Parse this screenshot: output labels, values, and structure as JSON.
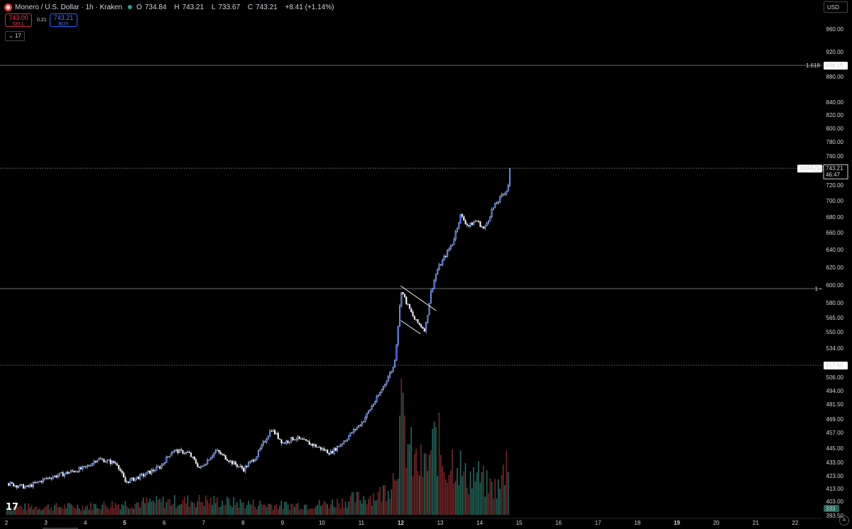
{
  "header": {
    "symbol_title": "Monero / U.S. Dollar · 1h · Kraken",
    "ohlc": {
      "open_label": "O",
      "open": "734.84",
      "high_label": "H",
      "high": "743.21",
      "low_label": "L",
      "low": "733.67",
      "close_label": "C",
      "close": "743.21",
      "change": "+8.41 (+1.14%)"
    }
  },
  "trade": {
    "sell_price": "743.00",
    "sell_label": "SELL",
    "spread": "0.21",
    "buy_price": "743.21",
    "buy_label": "BUY"
  },
  "indicator_toggle": "17",
  "currency": "USD",
  "badges": {
    "fib_1618_label": "1.618",
    "fib_1618_price": "898.16",
    "symbol": "XMRUSD",
    "last_price": "743.21",
    "countdown": "46:47",
    "fib_1_label": "1",
    "support_price": "517.60",
    "volume": "333",
    "auto_scale": "A"
  },
  "colors": {
    "up": "#2962ff",
    "down": "#ffffff",
    "vol_up": "#1f6b5e",
    "vol_down": "#7a2626",
    "level": "#9aa0a6",
    "background": "#000000"
  },
  "chart_data": {
    "type": "candlestick",
    "y_ticks": [
      "960.00",
      "920.00",
      "880.00",
      "840.00",
      "820.00",
      "800.00",
      "780.00",
      "760.00",
      "720.00",
      "700.00",
      "680.00",
      "660.00",
      "640.00",
      "620.00",
      "600.00",
      "580.00",
      "565.00",
      "550.00",
      "534.00",
      "506.00",
      "494.00",
      "481.50",
      "469.00",
      "457.00",
      "445.00",
      "433.00",
      "423.00",
      "413.00",
      "403.00",
      "393.50"
    ],
    "x_ticks": [
      {
        "label": "2",
        "bold": false
      },
      {
        "label": "3",
        "bold": false
      },
      {
        "label": "4",
        "bold": false
      },
      {
        "label": "5",
        "bold": true
      },
      {
        "label": "6",
        "bold": false
      },
      {
        "label": "7",
        "bold": false
      },
      {
        "label": "8",
        "bold": false
      },
      {
        "label": "9",
        "bold": false
      },
      {
        "label": "10",
        "bold": false
      },
      {
        "label": "11",
        "bold": false
      },
      {
        "label": "12",
        "bold": true
      },
      {
        "label": "13",
        "bold": false
      },
      {
        "label": "14",
        "bold": false
      },
      {
        "label": "15",
        "bold": false
      },
      {
        "label": "16",
        "bold": false
      },
      {
        "label": "17",
        "bold": false
      },
      {
        "label": "18",
        "bold": false
      },
      {
        "label": "19",
        "bold": true
      },
      {
        "label": "20",
        "bold": false
      },
      {
        "label": "21",
        "bold": false
      },
      {
        "label": "22",
        "bold": false
      }
    ],
    "first_day": 2,
    "last_day": 22,
    "levels": [
      {
        "name": "fib-1.618",
        "price": 898.16,
        "style": "solid"
      },
      {
        "name": "last-price",
        "price": 743.21,
        "style": "dotted"
      },
      {
        "name": "fib-1",
        "price": 596,
        "style": "solid"
      },
      {
        "name": "support",
        "price": 517.6,
        "style": "dotted"
      }
    ],
    "price_path": [
      [
        2.0,
        417
      ],
      [
        2.5,
        414
      ],
      [
        3.0,
        421
      ],
      [
        3.5,
        425
      ],
      [
        4.0,
        429
      ],
      [
        4.3,
        436
      ],
      [
        4.8,
        432
      ],
      [
        5.0,
        418
      ],
      [
        5.5,
        424
      ],
      [
        5.9,
        430
      ],
      [
        6.2,
        443
      ],
      [
        6.6,
        441
      ],
      [
        6.9,
        428
      ],
      [
        7.3,
        443
      ],
      [
        7.7,
        433
      ],
      [
        8.0,
        428
      ],
      [
        8.3,
        437
      ],
      [
        8.7,
        460
      ],
      [
        9.0,
        449
      ],
      [
        9.3,
        453
      ],
      [
        9.8,
        447
      ],
      [
        10.2,
        441
      ],
      [
        10.6,
        452
      ],
      [
        11.0,
        466
      ],
      [
        11.4,
        488
      ],
      [
        11.8,
        516
      ],
      [
        11.85,
        528
      ],
      [
        12.0,
        594
      ],
      [
        12.15,
        578
      ],
      [
        12.35,
        562
      ],
      [
        12.6,
        552
      ],
      [
        12.75,
        592
      ],
      [
        12.9,
        616
      ],
      [
        13.3,
        648
      ],
      [
        13.5,
        682
      ],
      [
        13.7,
        668
      ],
      [
        13.9,
        676
      ],
      [
        14.1,
        664
      ],
      [
        14.3,
        689
      ],
      [
        14.5,
        703
      ],
      [
        14.7,
        716
      ],
      [
        14.75,
        743.21
      ]
    ],
    "volume_profile": [
      [
        2.0,
        0.08
      ],
      [
        4.0,
        0.09
      ],
      [
        5.0,
        0.12
      ],
      [
        6.2,
        0.14
      ],
      [
        7.0,
        0.15
      ],
      [
        8.0,
        0.12
      ],
      [
        9.0,
        0.1
      ],
      [
        10.0,
        0.11
      ],
      [
        10.5,
        0.14
      ],
      [
        11.0,
        0.18
      ],
      [
        11.5,
        0.22
      ],
      [
        11.8,
        0.4
      ],
      [
        12.0,
        0.98
      ],
      [
        12.3,
        0.55
      ],
      [
        12.6,
        0.48
      ],
      [
        12.9,
        0.8
      ],
      [
        13.1,
        0.5
      ],
      [
        13.4,
        0.62
      ],
      [
        13.6,
        0.38
      ],
      [
        13.9,
        0.42
      ],
      [
        14.2,
        0.3
      ],
      [
        14.5,
        0.28
      ],
      [
        14.75,
        0.72
      ]
    ],
    "flag_lines": [
      [
        [
          12.0,
          599
        ],
        [
          12.9,
          572
        ]
      ],
      [
        [
          12.0,
          562
        ],
        [
          12.5,
          548
        ]
      ]
    ]
  }
}
